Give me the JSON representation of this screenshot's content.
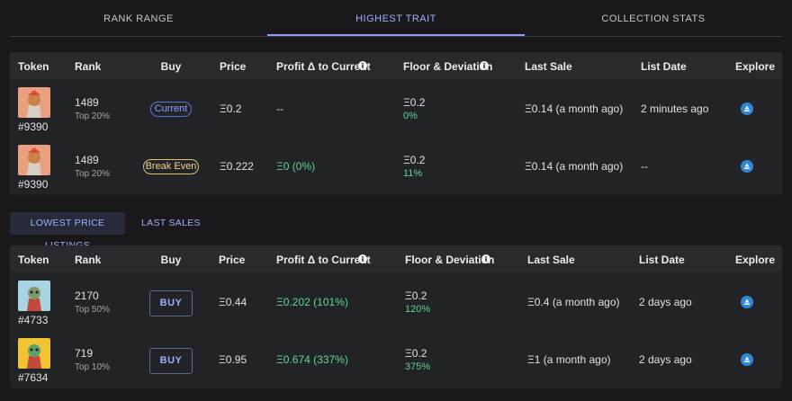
{
  "tabs": [
    "RANK RANGE",
    "HIGHEST TRAIT",
    "COLLECTION STATS"
  ],
  "highest_trait": {
    "headers": [
      "Token",
      "Rank",
      "Buy",
      "Price",
      "Profit Δ to Current",
      "Floor & Deviation",
      "Last Sale",
      "List Date",
      "Explore"
    ],
    "rows": [
      {
        "token": "#9390",
        "rank": "1489",
        "rank_tier": "Top 20%",
        "buy": "Current",
        "price": "Ξ0.2",
        "profit": "--",
        "floor": "Ξ0.2",
        "deviation": "0%",
        "last_sale": "Ξ0.14 (a month ago)",
        "list_date": "2 minutes ago"
      },
      {
        "token": "#9390",
        "rank": "1489",
        "rank_tier": "Top 20%",
        "buy": "Break Even",
        "price": "Ξ0.222",
        "profit": "Ξ0 (0%)",
        "floor": "Ξ0.2",
        "deviation": "11%",
        "last_sale": "Ξ0.14 (a month ago)",
        "list_date": "--"
      }
    ]
  },
  "listing_tabs": [
    "LOWEST PRICE LISTINGS",
    "LAST SALES"
  ],
  "listings": {
    "headers": [
      "Token",
      "Rank",
      "Buy",
      "Price",
      "Profit Δ to Current",
      "Floor & Deviation",
      "Last Sale",
      "List Date",
      "Explore"
    ],
    "rows": [
      {
        "token": "#4733",
        "rank": "2170",
        "rank_tier": "Top 50%",
        "buy": "BUY",
        "price": "Ξ0.44",
        "profit": "Ξ0.202 (101%)",
        "floor": "Ξ0.2",
        "deviation": "120%",
        "last_sale": "Ξ0.4 (a month ago)",
        "list_date": "2 days ago"
      },
      {
        "token": "#7634",
        "rank": "719",
        "rank_tier": "Top 10%",
        "buy": "BUY",
        "price": "Ξ0.95",
        "profit": "Ξ0.674 (337%)",
        "floor": "Ξ0.2",
        "deviation": "375%",
        "last_sale": "Ξ1 (a month ago)",
        "list_date": "2 days ago"
      }
    ]
  }
}
